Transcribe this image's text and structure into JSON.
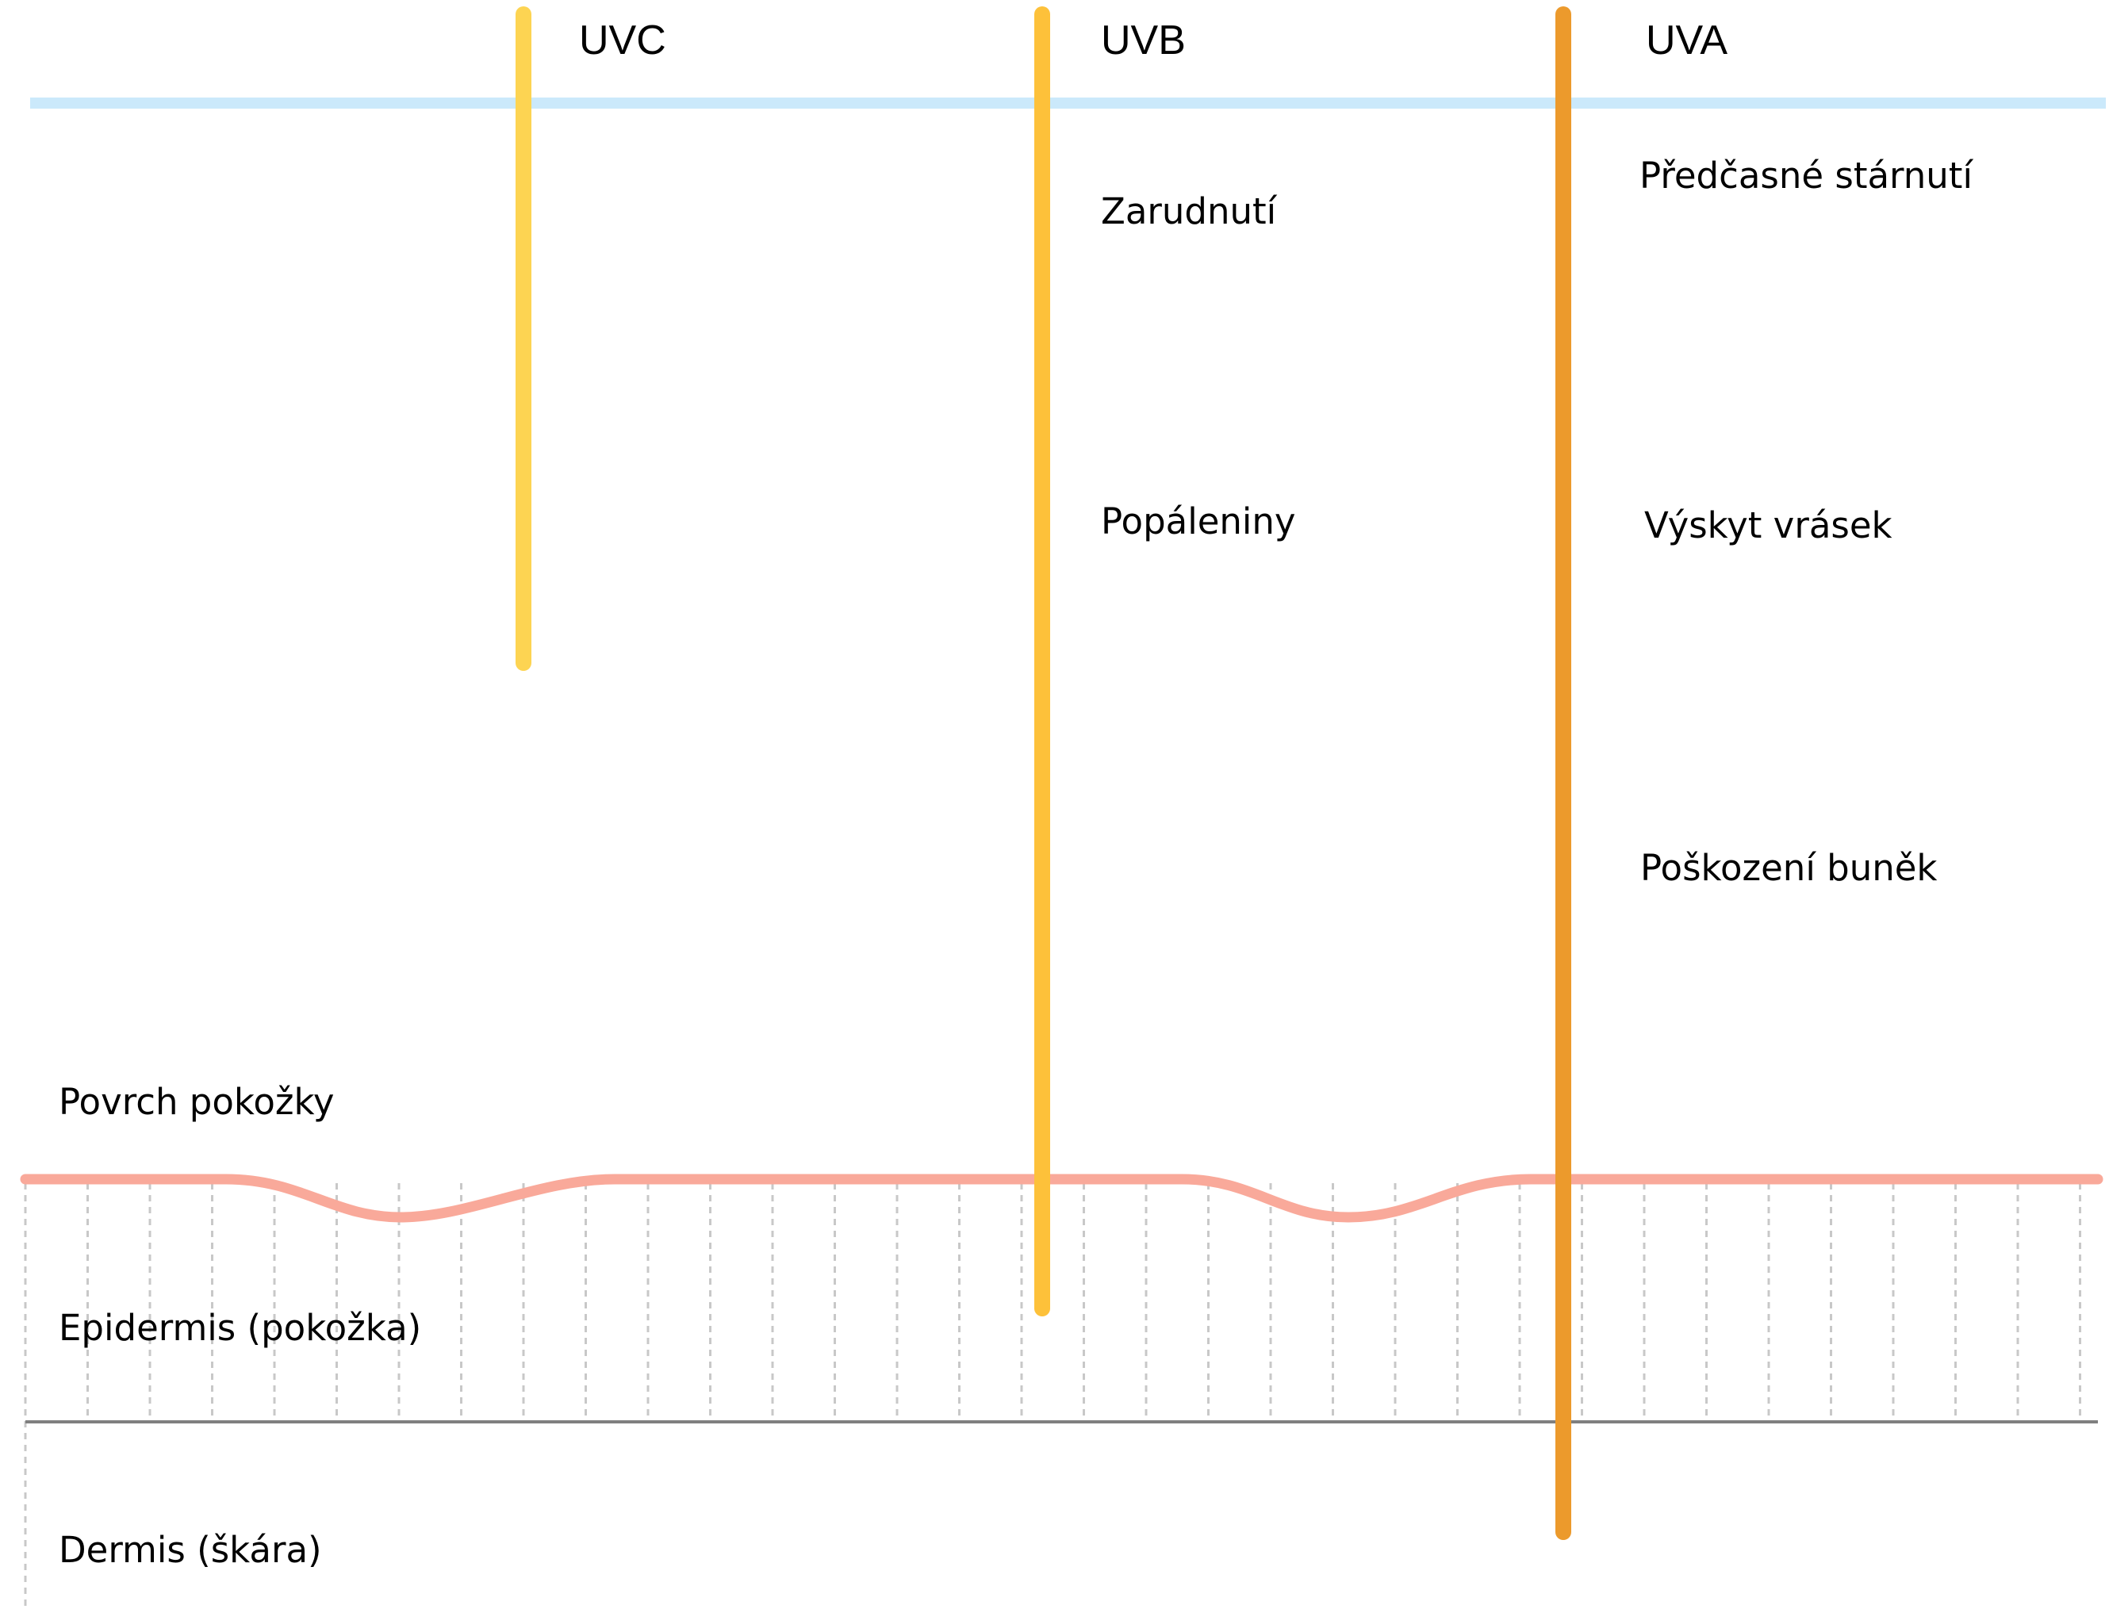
{
  "colors": {
    "background": "#ffffff",
    "atmosphere_line": "#cbe9fb",
    "skin_surface": "#f9a99a",
    "layer_boundary": "#7f7f7f",
    "grid_dots": "#c8c8c8",
    "uvc": "#fdd452",
    "uvb": "#fdc13a",
    "uva": "#ec9a2c"
  },
  "rays": [
    {
      "id": "uvc",
      "label": "UVC",
      "color": "#fdd452"
    },
    {
      "id": "uvb",
      "label": "UVB",
      "color": "#fdc13a"
    },
    {
      "id": "uva",
      "label": "UVA",
      "color": "#ec9a2c"
    }
  ],
  "effects": {
    "uvb": [
      "Zarudnutí",
      "Popáleniny"
    ],
    "uva": [
      "Předčasné stárnutí",
      "Výskyt vrásek",
      "Poškození buněk"
    ]
  },
  "layers": {
    "surface": "Povrch pokožky",
    "epidermis": "Epidermis (pokožka)",
    "dermis": "Dermis (škára)"
  }
}
